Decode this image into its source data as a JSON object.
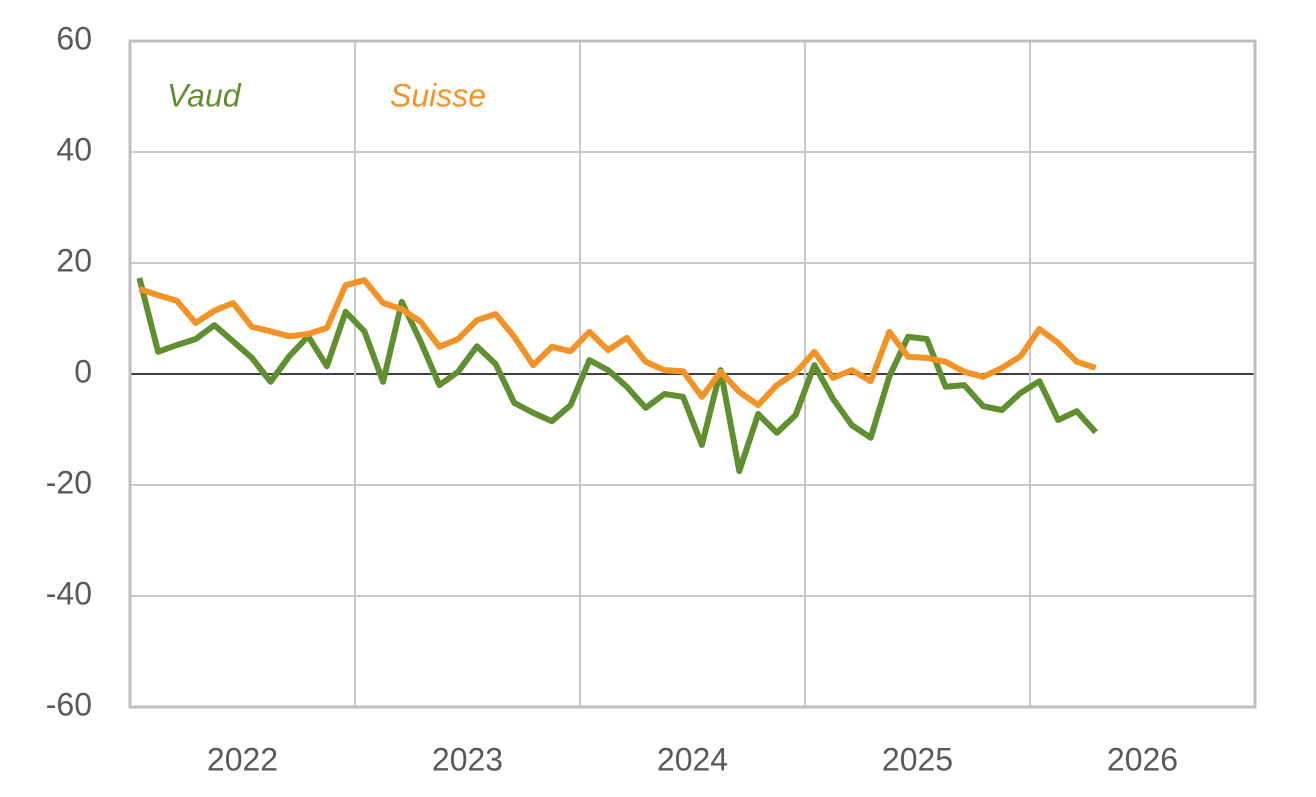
{
  "chart_data": {
    "type": "line",
    "x": [
      2022.042,
      2022.125,
      2022.208,
      2022.292,
      2022.375,
      2022.458,
      2022.542,
      2022.625,
      2022.708,
      2022.792,
      2022.875,
      2022.958,
      2023.042,
      2023.125,
      2023.208,
      2023.292,
      2023.375,
      2023.458,
      2023.542,
      2023.625,
      2023.708,
      2023.792,
      2023.875,
      2023.958,
      2024.042,
      2024.125,
      2024.208,
      2024.292,
      2024.375,
      2024.458,
      2024.542,
      2024.625,
      2024.708,
      2024.792,
      2024.875,
      2024.958,
      2025.042,
      2025.125,
      2025.208,
      2025.292,
      2025.375,
      2025.458,
      2025.542,
      2025.625,
      2025.708,
      2025.792,
      2025.875,
      2025.958,
      2026.042,
      2026.125,
      2026.208,
      2026.292
    ],
    "series": [
      {
        "name": "Vaud",
        "color": "#5f8f2e",
        "values": [
          17.3,
          4.0,
          5.2,
          6.3,
          8.8,
          5.9,
          2.9,
          -1.4,
          3.2,
          6.8,
          1.4,
          11.2,
          7.7,
          -1.4,
          13.0,
          5.8,
          -2.0,
          0.4,
          5.0,
          1.8,
          -5.2,
          -7.0,
          -8.5,
          -5.6,
          2.5,
          0.7,
          -2.3,
          -6.1,
          -3.6,
          -4.1,
          -12.8,
          0.7,
          -17.5,
          -7.2,
          -10.6,
          -7.4,
          1.6,
          -4.5,
          -9.2,
          -11.5,
          -0.4,
          6.7,
          6.3,
          -2.3,
          -2.0,
          -5.8,
          -6.5,
          -3.4,
          -1.3,
          -8.3,
          -6.7,
          -10.5
        ]
      },
      {
        "name": "Suisse",
        "color": "#f39325",
        "values": [
          15.3,
          14.2,
          13.2,
          9.2,
          11.4,
          12.8,
          8.5,
          7.7,
          6.8,
          7.2,
          8.3,
          16.0,
          16.9,
          12.8,
          11.7,
          9.4,
          4.9,
          6.3,
          9.7,
          10.8,
          6.7,
          1.6,
          4.9,
          4.1,
          7.6,
          4.3,
          6.5,
          2.2,
          0.7,
          0.5,
          -4.1,
          0.4,
          -3.2,
          -5.6,
          -2.0,
          0.2,
          4.0,
          -0.7,
          0.7,
          -1.3,
          7.6,
          3.1,
          2.9,
          2.2,
          0.4,
          -0.5,
          1.1,
          3.2,
          8.1,
          5.6,
          2.2,
          1.1
        ]
      }
    ],
    "xlim": [
      2022,
      2027
    ],
    "xticks": [
      {
        "value": 2022.5,
        "label": "2022"
      },
      {
        "value": 2023.5,
        "label": "2023"
      },
      {
        "value": 2024.5,
        "label": "2024"
      },
      {
        "value": 2025.5,
        "label": "2025"
      },
      {
        "value": 2026.5,
        "label": "2026"
      }
    ],
    "xgrid": [
      2023,
      2024,
      2025,
      2026
    ],
    "ylim": [
      -60,
      60
    ],
    "yticks": [
      -60,
      -40,
      -20,
      0,
      20,
      40,
      60
    ],
    "grid": true
  }
}
